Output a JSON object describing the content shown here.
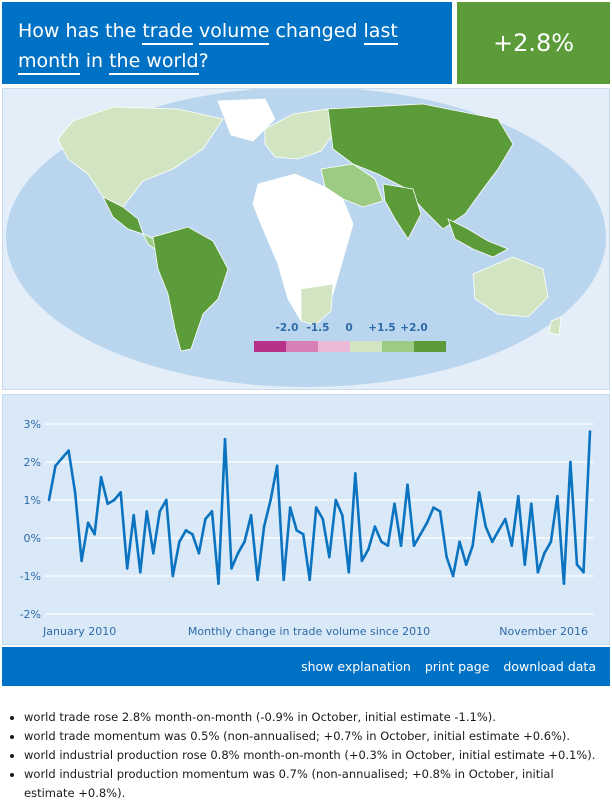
{
  "header": {
    "question_parts": [
      "How has the ",
      "trade",
      " ",
      "volume",
      " changed ",
      "last month",
      " in ",
      "the world",
      "?"
    ],
    "result": "+2.8%"
  },
  "colors": {
    "brand_blue": "#0072c6",
    "result_green": "#5b9b3a",
    "ocean": "#b9d6ee",
    "scale": [
      "#b6328a",
      "#d77fb6",
      "#ebb8d8",
      "#d2e5c2",
      "#9ccb84",
      "#5b9b3a"
    ]
  },
  "map": {
    "legend_labels": [
      "-2.0",
      "-1.5",
      "0",
      "+1.5",
      "+2.0"
    ]
  },
  "actions": {
    "explanation": "show explanation",
    "print": "print page",
    "download": "download data"
  },
  "bullets": [
    "world trade rose 2.8% month-on-month (-0.9% in October, initial estimate -1.1%).",
    "world trade momentum was 0.5% (non-annualised; +0.7% in October, initial estimate +0.6%).",
    "world industrial production rose 0.8% month-on-month (+0.3% in October, initial estimate +0.1%).",
    "world industrial production momentum was 0.7% (non-annualised; +0.8% in October, initial estimate +0.8%)."
  ],
  "chart_data": {
    "type": "line",
    "xlabel": "Monthly change in trade volume since 2010",
    "x_start_label": "January 2010",
    "x_end_label": "November 2016",
    "ylim": [
      -2,
      3
    ],
    "yticks": [
      "3%",
      "2%",
      "1%",
      "0%",
      "-1%",
      "-2%"
    ],
    "ytick_values": [
      3,
      2,
      1,
      0,
      -1,
      -2
    ],
    "grid": true,
    "series": [
      {
        "values": [
          1.0,
          1.9,
          2.1,
          2.3,
          1.2,
          -0.6,
          0.4,
          0.1,
          1.6,
          0.9,
          1.0,
          1.2,
          -0.8,
          0.6,
          -0.9,
          0.7,
          -0.4,
          0.7,
          1.0,
          -1.0,
          -0.1,
          0.2,
          0.1,
          -0.4,
          0.5,
          0.7,
          -1.2,
          2.6,
          -0.8,
          -0.4,
          -0.1,
          0.6,
          -1.1,
          0.3,
          1.0,
          1.9,
          -1.1,
          0.8,
          0.2,
          0.1,
          -1.1,
          0.8,
          0.5,
          -0.5,
          1.0,
          0.6,
          -0.9,
          1.7,
          -0.6,
          -0.3,
          0.3,
          -0.1,
          -0.2,
          0.9,
          -0.2,
          1.4,
          -0.2,
          0.1,
          0.4,
          0.8,
          0.7,
          -0.5,
          -1.0,
          -0.1,
          -0.7,
          -0.2,
          1.2,
          0.3,
          -0.1,
          0.2,
          0.5,
          -0.2,
          1.1,
          -0.7,
          0.9,
          -0.9,
          -0.4,
          -0.1,
          1.1,
          -1.2,
          2.0,
          -0.7,
          -0.9,
          2.8
        ]
      }
    ]
  }
}
